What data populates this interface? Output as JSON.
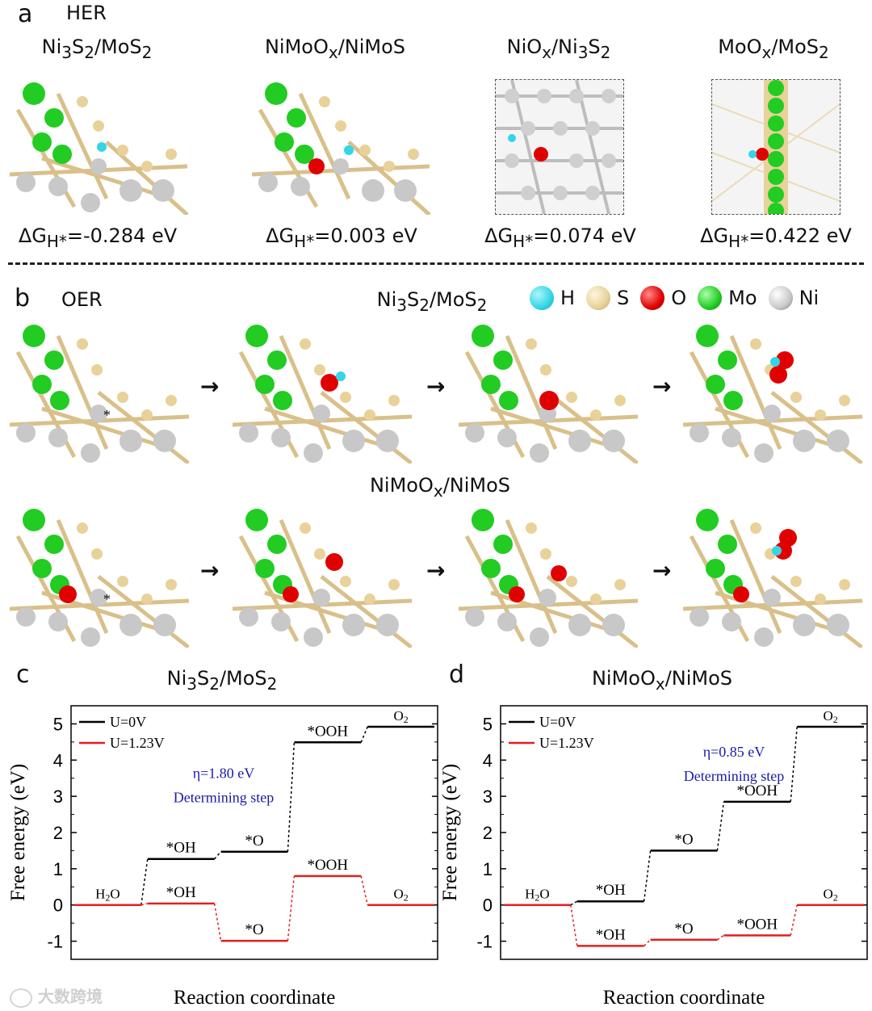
{
  "panel_a": {
    "letter": "a",
    "title": "HER",
    "materials": [
      {
        "name": "Ni3S2/MoS2",
        "dg": "-0.284 eV"
      },
      {
        "name": "NiMoOx/NiMoS",
        "dg": "0.003 eV"
      },
      {
        "name": "NiOx/Ni3S2",
        "dg": "0.074 eV"
      },
      {
        "name": "MoOx/MoS2",
        "dg": "0.422 eV"
      }
    ]
  },
  "panel_b": {
    "letter": "b",
    "title": "OER",
    "row1_label": "Ni3S2/MoS2",
    "row2_label": "NiMoOx/NiMoS",
    "legend": [
      {
        "label": "H",
        "color": "#33d6e6"
      },
      {
        "label": "S",
        "color": "#e8d29a"
      },
      {
        "label": "O",
        "color": "#e00000"
      },
      {
        "label": "Mo",
        "color": "#22cc22"
      },
      {
        "label": "Ni",
        "color": "#c8c8c8"
      }
    ],
    "arrow": "→"
  },
  "chart_data": [
    {
      "panel": "c",
      "type": "line",
      "title": "Ni3S2/MoS2",
      "xlabel": "Reaction coordinate",
      "ylabel": "Free energy (eV)",
      "ylim": [
        -1.5,
        5.5
      ],
      "yticks": [
        -1,
        0,
        1,
        2,
        3,
        4,
        5
      ],
      "steps": [
        "H2O",
        "*OH",
        "*O",
        "*OOH",
        "O2"
      ],
      "series": [
        {
          "name": "U=0V",
          "color": "#000000",
          "values": [
            0,
            1.27,
            1.47,
            4.49,
            4.92
          ],
          "labels": [
            "H2O",
            "*OH",
            "*O",
            "*OOH",
            "O2"
          ]
        },
        {
          "name": "U=1.23V",
          "color": "#e02020",
          "values": [
            0,
            0.04,
            -0.99,
            0.8,
            0
          ],
          "labels": [
            "",
            "*OH",
            "*O",
            "*OOH",
            "O2"
          ]
        }
      ],
      "annotation": {
        "eta": "η=1.80 eV",
        "text": "Determining step",
        "color": "#1a1aa8"
      }
    },
    {
      "panel": "d",
      "type": "line",
      "title": "NiMoOx/NiMoS",
      "xlabel": "Reaction coordinate",
      "ylabel": "Free energy (eV)",
      "ylim": [
        -1.5,
        5.5
      ],
      "yticks": [
        -1,
        0,
        1,
        2,
        3,
        4,
        5
      ],
      "steps": [
        "H2O",
        "*OH",
        "*O",
        "*OOH",
        "O2"
      ],
      "series": [
        {
          "name": "U=0V",
          "color": "#000000",
          "values": [
            0,
            0.1,
            1.5,
            2.85,
            4.92
          ],
          "labels": [
            "H2O",
            "*OH",
            "*O",
            "*OOH",
            "O2"
          ]
        },
        {
          "name": "U=1.23V",
          "color": "#e02020",
          "values": [
            0,
            -1.13,
            -0.96,
            -0.84,
            0
          ],
          "labels": [
            "",
            "*OH",
            "*O",
            "*OOH",
            "O2"
          ]
        }
      ],
      "annotation": {
        "eta": "η=0.85 eV",
        "text": "Determining step",
        "color": "#1a1aa8"
      }
    }
  ],
  "watermark": "大数跨境"
}
